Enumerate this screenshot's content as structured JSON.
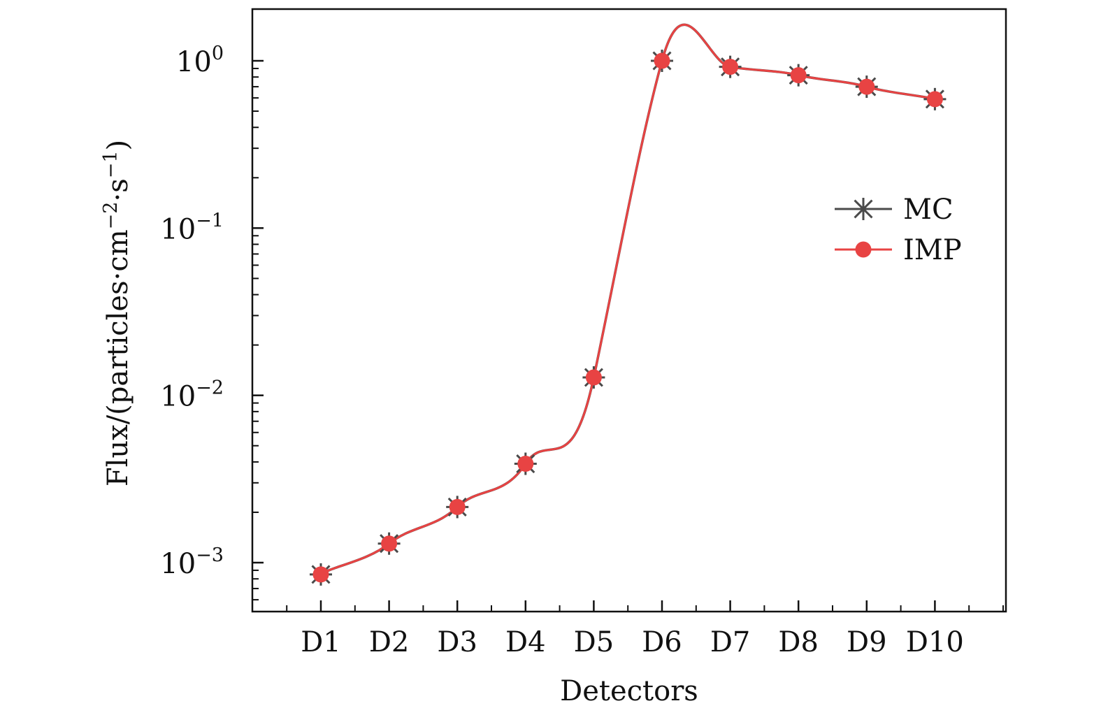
{
  "chart_data": {
    "type": "line",
    "xlabel": "Detectors",
    "ylabel": "Flux/(particles·cm−2·s−1)",
    "ylabel_parts": {
      "prefix": "Flux/(particles·cm",
      "exp1": "−2",
      "mid": "·s",
      "exp2": "−1",
      "suffix": ")"
    },
    "yscale": "log",
    "ylim": [
      0.0005,
      2.0
    ],
    "grid": false,
    "legend_position": "right",
    "categories": [
      "D1",
      "D2",
      "D3",
      "D4",
      "D5",
      "D6",
      "D7",
      "D8",
      "D9",
      "D10"
    ],
    "yticks": [
      {
        "value": 0.001,
        "base": "10",
        "exp": "−3"
      },
      {
        "value": 0.01,
        "base": "10",
        "exp": "−2"
      },
      {
        "value": 0.1,
        "base": "10",
        "exp": "−1"
      },
      {
        "value": 1,
        "base": "10",
        "exp": "0"
      }
    ],
    "series": [
      {
        "name": "MC",
        "marker": "asterisk",
        "color": "#4a4a4a",
        "values": [
          0.00085,
          0.0013,
          0.00215,
          0.0039,
          0.0128,
          1.0,
          0.92,
          0.82,
          0.7,
          0.59
        ]
      },
      {
        "name": "IMP",
        "marker": "circle",
        "color": "#e84343",
        "values": [
          0.00085,
          0.0013,
          0.00215,
          0.0039,
          0.0128,
          1.0,
          0.92,
          0.82,
          0.7,
          0.59
        ]
      }
    ]
  }
}
